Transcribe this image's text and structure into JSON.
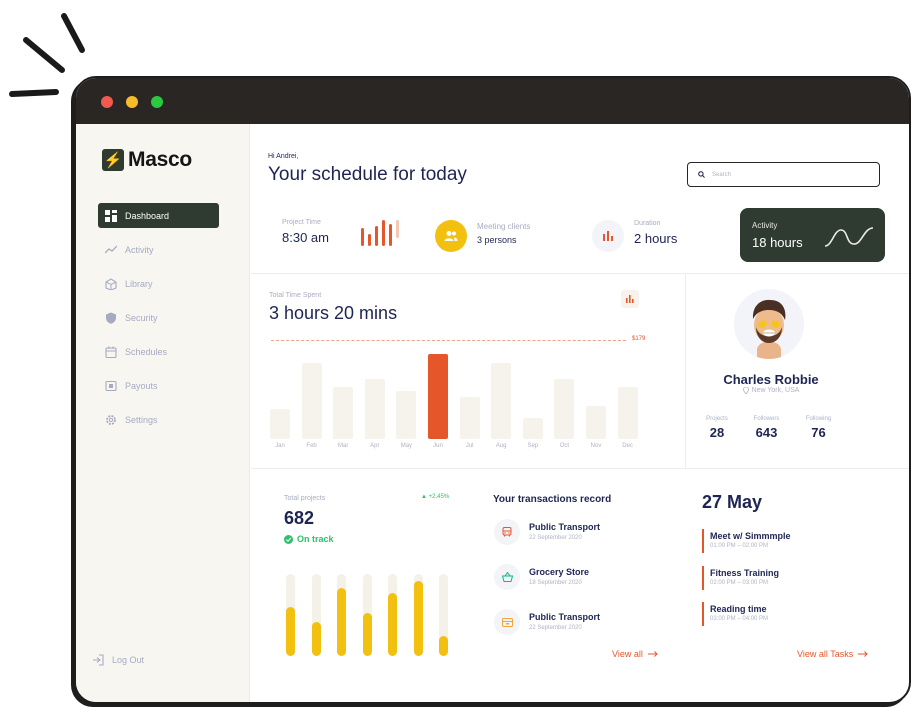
{
  "app": {
    "name": "Masco",
    "logo_glyph": "⚡"
  },
  "window": {
    "dots": [
      "#f05a4f",
      "#f5bd2b",
      "#2bc840"
    ]
  },
  "sidebar": {
    "items": [
      {
        "label": "Dashboard",
        "icon": "dashboard-icon",
        "active": true
      },
      {
        "label": "Activity",
        "icon": "activity-icon"
      },
      {
        "label": "Library",
        "icon": "library-icon"
      },
      {
        "label": "Security",
        "icon": "shield-icon"
      },
      {
        "label": "Schedules",
        "icon": "calendar-icon"
      },
      {
        "label": "Payouts",
        "icon": "payouts-icon"
      },
      {
        "label": "Settings",
        "icon": "gear-icon"
      }
    ],
    "logout": "Log Out"
  },
  "header": {
    "greeting": "Hi Andrei,",
    "title": "Your schedule for today",
    "search_placeholder": "Search"
  },
  "stats": {
    "project_time": {
      "label": "Project Time",
      "value": "8:30 am"
    },
    "meeting": {
      "label": "Meeting clients",
      "value": "3 persons"
    },
    "duration": {
      "label": "Duration",
      "value": "2 hours"
    },
    "activity": {
      "label": "Activity",
      "value": "18 hours"
    }
  },
  "time_spent": {
    "label": "Total Time Spent",
    "value": "3 hours 20 mins",
    "target_label": "$179",
    "chart_data": {
      "type": "bar",
      "categories": [
        "Jan",
        "Feb",
        "Mar",
        "Apr",
        "May",
        "Jun",
        "Jul",
        "Aug",
        "Sep",
        "Oct",
        "Nov",
        "Dec"
      ],
      "values": [
        32,
        80,
        55,
        63,
        51,
        90,
        44,
        80,
        22,
        63,
        35,
        55
      ],
      "highlight": "Jun",
      "ylim": [
        0,
        100
      ]
    }
  },
  "profile": {
    "name": "Charles Robbie",
    "location": "New York, USA",
    "stats": [
      {
        "label": "Projects",
        "value": "28"
      },
      {
        "label": "Followers",
        "value": "643"
      },
      {
        "label": "Following",
        "value": "76"
      }
    ]
  },
  "projects": {
    "label": "Total projects",
    "change": "+2.45%",
    "value": "682",
    "status": "On track",
    "progress": [
      0.6,
      0.42,
      0.83,
      0.52,
      0.77,
      0.92,
      0.24
    ]
  },
  "transactions": {
    "title": "Your transactions record",
    "items": [
      {
        "title": "Public Transport",
        "date": "22 September 2020",
        "icon": "bus-icon"
      },
      {
        "title": "Grocery Store",
        "date": "18 September 2020",
        "icon": "basket-icon"
      },
      {
        "title": "Public Transport",
        "date": "22 September 2020",
        "icon": "ticket-icon"
      }
    ],
    "view_all": "View all"
  },
  "tasks": {
    "date": "27 May",
    "items": [
      {
        "title": "Meet w/ Simmmple",
        "time": "01:00 PM – 02:00 PM"
      },
      {
        "title": "Fitness Training",
        "time": "02:00 PM – 03:00 PM"
      },
      {
        "title": "Reading time",
        "time": "03:00 PM – 04:00 PM"
      }
    ],
    "view_all": "View all Tasks"
  },
  "colors": {
    "accent": "#e5562b",
    "dark_green": "#2f3b30",
    "yellow": "#f2c00f",
    "navy": "#1e2552",
    "success": "#2cc26b"
  }
}
